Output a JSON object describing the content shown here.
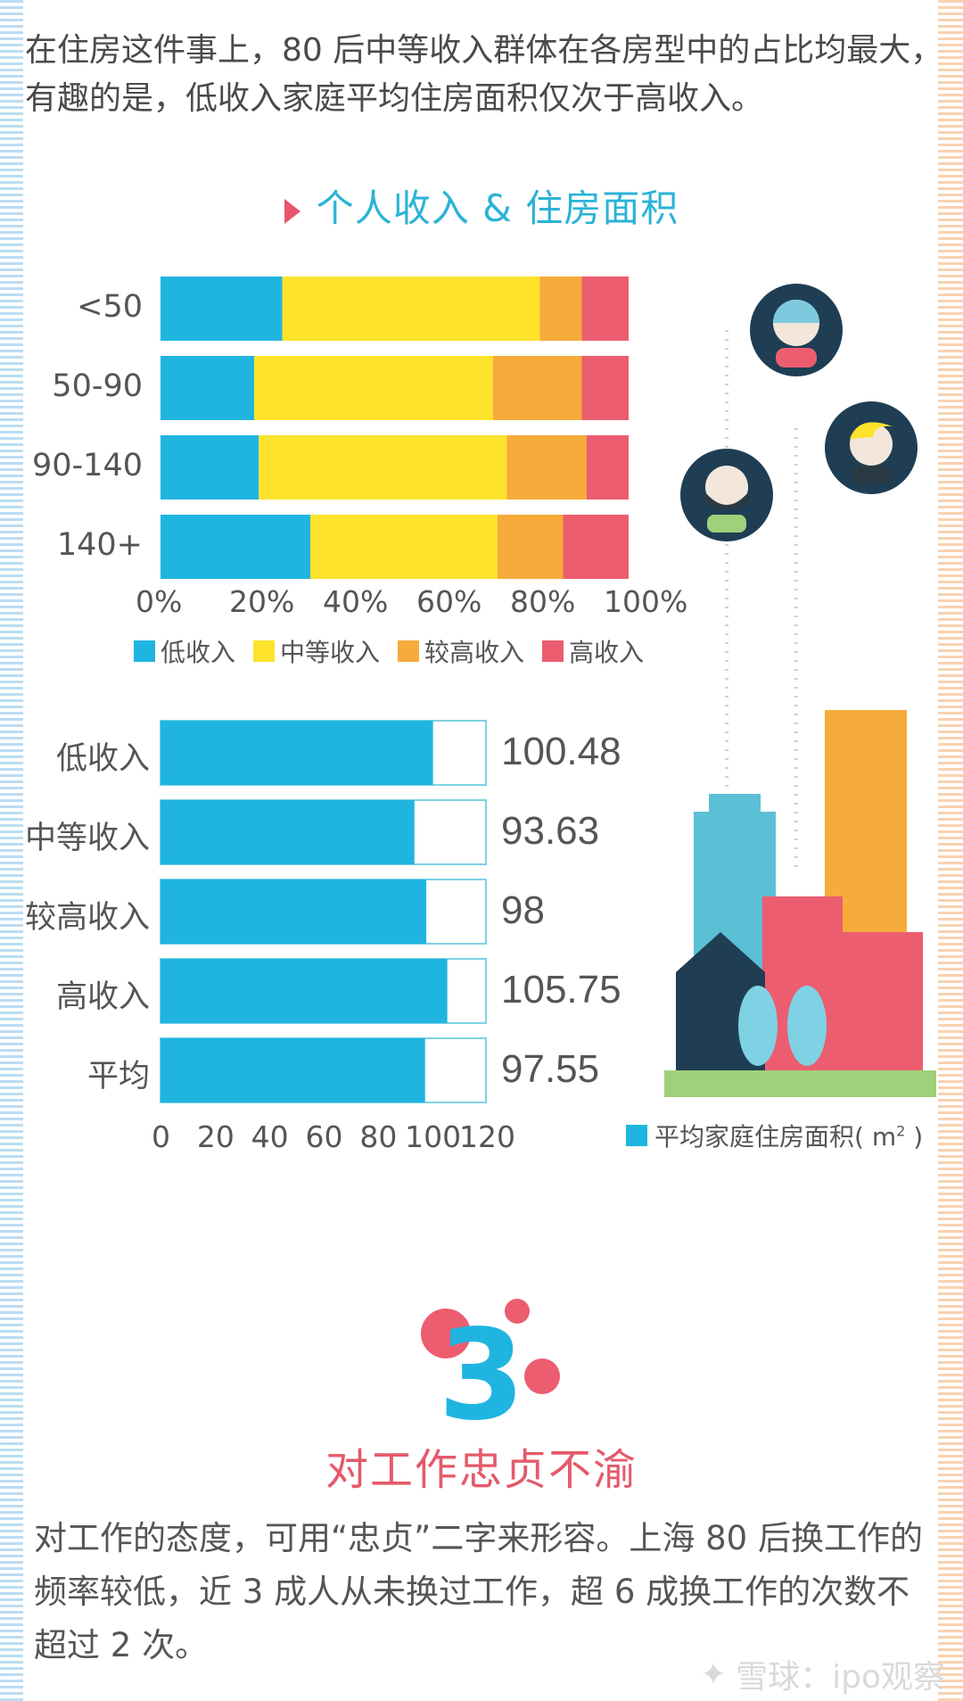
{
  "intro_text": "在住房这件事上，80 后中等收入群体在各房型中的占比均最大，有趣的是，低收入家庭平均住房面积仅次于高收入。",
  "colors": {
    "low": "#1fb5e0",
    "middle": "#fde32b",
    "upper": "#f6ab3b",
    "high": "#ec5d6f",
    "area_bar": "#1fb5e0",
    "title": "#2bb3d6",
    "accent": "#e8566b"
  },
  "chart_data": [
    {
      "type": "bar",
      "orientation": "horizontal",
      "stacked": true,
      "title": "个人收入 & 住房面积",
      "categories": [
        "<50",
        "50-90",
        "90-140",
        "140+"
      ],
      "series": [
        {
          "name": "低收入",
          "values": [
            26,
            20,
            21,
            32
          ]
        },
        {
          "name": "中等收入",
          "values": [
            55,
            51,
            53,
            40
          ]
        },
        {
          "name": "较高收入",
          "values": [
            9,
            19,
            17,
            14
          ]
        },
        {
          "name": "高收入",
          "values": [
            10,
            10,
            9,
            14
          ]
        }
      ],
      "xlim": [
        0,
        100
      ],
      "xticks": [
        "0%",
        "20%",
        "40%",
        "60%",
        "80%",
        "100%"
      ],
      "legend_position": "bottom"
    },
    {
      "type": "bar",
      "orientation": "horizontal",
      "categories": [
        "低收入",
        "中等收入",
        "较高收入",
        "高收入",
        "平均"
      ],
      "series": [
        {
          "name": "平均家庭住房面积( m² )",
          "values": [
            100.48,
            93.63,
            98,
            105.75,
            97.55
          ]
        }
      ],
      "value_labels": [
        "100.48",
        "93.63",
        "98",
        "105.75",
        "97.55"
      ],
      "xlim": [
        0,
        120
      ],
      "xticks": [
        "0",
        "20",
        "40",
        "60",
        "80",
        "100",
        "120"
      ],
      "legend_label": "平均家庭住房面积( m",
      "legend_unit_sup": "2",
      "legend_close": " )",
      "legend_position": "bottom-right"
    }
  ],
  "section": {
    "number": "3",
    "title": "对工作忠贞不渝",
    "body": "对工作的态度，可用“忠贞”二字来形容。上海 80 后换工作的频率较低，近 3 成人从未换过工作，超 6 成换工作的次数不超过 2 次。"
  },
  "watermark": "雪球：ipo观察"
}
